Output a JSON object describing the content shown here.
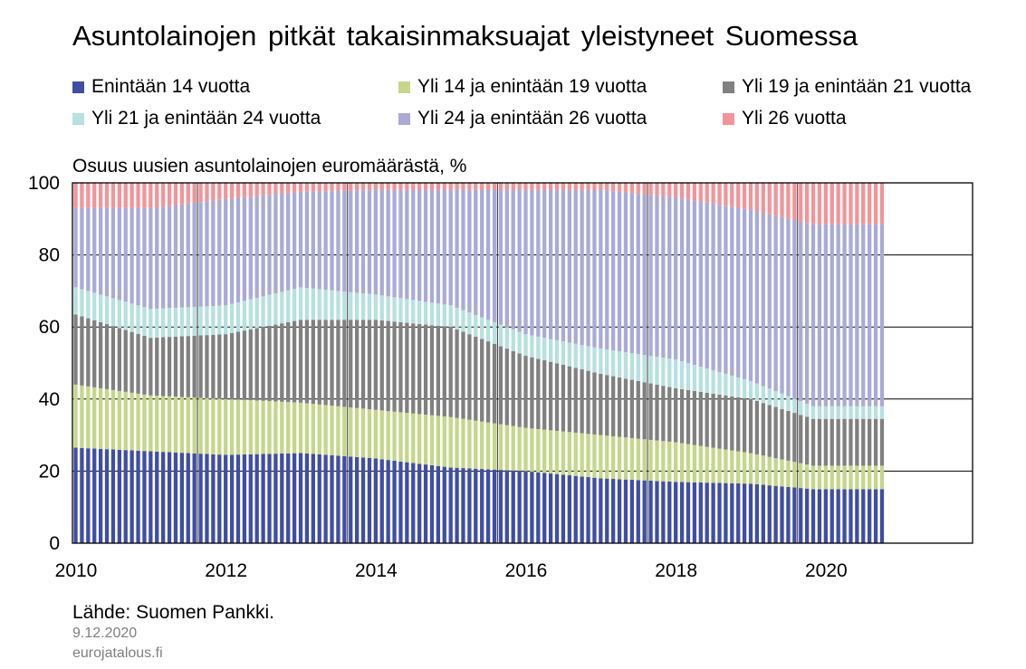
{
  "chart_data": {
    "type": "bar",
    "stacked": true,
    "title": "Asuntolainojen pitkät takaisinmaksuajat yleistyneet Suomessa",
    "ylabel": "Osuus uusien asuntolainojen euromäärästä, %",
    "ylim": [
      0,
      100
    ],
    "yticks": [
      "0",
      "20",
      "40",
      "60",
      "80",
      "100"
    ],
    "xticks": [
      "2010",
      "2012",
      "2014",
      "2016",
      "2018",
      "2020"
    ],
    "xlim": [
      "2010-01",
      "2021-12"
    ],
    "x_start": "2010-01",
    "x_end": "2020-10",
    "grid": "horizontal",
    "legend_position": "top",
    "series": [
      {
        "name": "Enintään 14 vuotta",
        "color": "#3f4ea3",
        "anchors": [
          [
            0,
            26.5
          ],
          [
            12,
            25.5
          ],
          [
            24,
            24.5
          ],
          [
            36,
            25
          ],
          [
            48,
            23.5
          ],
          [
            60,
            21
          ],
          [
            72,
            20
          ],
          [
            84,
            18
          ],
          [
            96,
            17
          ],
          [
            108,
            16.5
          ],
          [
            118,
            15
          ]
        ]
      },
      {
        "name": "Yli 14 ja enintään 19 vuotta",
        "color": "#c5d68a",
        "anchors": [
          [
            0,
            44
          ],
          [
            12,
            41
          ],
          [
            24,
            40
          ],
          [
            36,
            39
          ],
          [
            48,
            37
          ],
          [
            60,
            35
          ],
          [
            72,
            32
          ],
          [
            84,
            30
          ],
          [
            96,
            28
          ],
          [
            108,
            25
          ],
          [
            118,
            21.5
          ]
        ]
      },
      {
        "name": "Yli 19 ja enintään 21 vuotta",
        "color": "#808080",
        "anchors": [
          [
            0,
            63.5
          ],
          [
            12,
            57
          ],
          [
            24,
            58
          ],
          [
            36,
            62
          ],
          [
            48,
            62
          ],
          [
            60,
            60
          ],
          [
            72,
            52
          ],
          [
            84,
            47
          ],
          [
            96,
            43
          ],
          [
            108,
            40
          ],
          [
            118,
            34.5
          ]
        ]
      },
      {
        "name": "Yli 21 ja enintään 24 vuotta",
        "color": "#b7e0e0",
        "anchors": [
          [
            0,
            71
          ],
          [
            12,
            65
          ],
          [
            24,
            66
          ],
          [
            36,
            71
          ],
          [
            48,
            69
          ],
          [
            60,
            66
          ],
          [
            72,
            58
          ],
          [
            84,
            54
          ],
          [
            96,
            51
          ],
          [
            108,
            45
          ],
          [
            118,
            38
          ]
        ]
      },
      {
        "name": "Yli 24 ja enintään 26 vuotta",
        "color": "#aaaad6",
        "anchors": [
          [
            0,
            93
          ],
          [
            12,
            93
          ],
          [
            24,
            95.5
          ],
          [
            36,
            97.5
          ],
          [
            48,
            98
          ],
          [
            60,
            98
          ],
          [
            72,
            98
          ],
          [
            84,
            98
          ],
          [
            96,
            96
          ],
          [
            108,
            92.5
          ],
          [
            118,
            88.5
          ]
        ]
      },
      {
        "name": "Yli 26 vuotta",
        "color": "#f0959a",
        "anchors": [
          [
            0,
            100
          ],
          [
            118,
            100
          ]
        ]
      }
    ]
  },
  "source": "Lähde: Suomen Pankki.",
  "date": "9.12.2020",
  "site": "eurojatalous.fi"
}
